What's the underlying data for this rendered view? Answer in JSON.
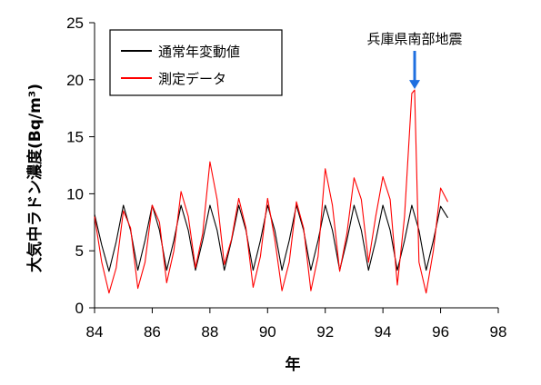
{
  "chart_data": {
    "type": "line",
    "xlabel": "年",
    "ylabel": "大気中ラドン濃度(Bq/m³)",
    "xlim": [
      84,
      98
    ],
    "ylim": [
      0,
      25
    ],
    "x_ticks": [
      "84",
      "86",
      "88",
      "90",
      "92",
      "94",
      "96",
      "98"
    ],
    "y_ticks": [
      "0",
      "5",
      "10",
      "15",
      "20",
      "25"
    ],
    "legend_position": "top-left",
    "grid": false,
    "series": [
      {
        "name": "通常年変動値",
        "color": "#000000",
        "x": [
          84.0,
          84.25,
          84.5,
          84.75,
          85.0,
          85.25,
          85.5,
          85.75,
          86.0,
          86.25,
          86.5,
          86.75,
          87.0,
          87.25,
          87.5,
          87.75,
          88.0,
          88.25,
          88.5,
          88.75,
          89.0,
          89.25,
          89.5,
          89.75,
          90.0,
          90.25,
          90.5,
          90.75,
          91.0,
          91.25,
          91.5,
          91.75,
          92.0,
          92.25,
          92.5,
          92.75,
          93.0,
          93.25,
          93.5,
          93.75,
          94.0,
          94.25,
          94.5,
          94.75,
          95.0,
          95.25,
          95.5,
          95.75,
          96.0,
          96.25
        ],
        "y": [
          8.2,
          5.5,
          3.2,
          5.8,
          9.0,
          6.8,
          3.3,
          5.9,
          9.0,
          6.8,
          3.3,
          5.9,
          9.0,
          6.8,
          3.3,
          5.9,
          9.0,
          6.8,
          3.3,
          5.9,
          9.0,
          6.8,
          3.3,
          5.9,
          9.0,
          6.8,
          3.3,
          5.9,
          9.0,
          6.8,
          3.3,
          5.9,
          9.0,
          6.8,
          3.3,
          5.9,
          9.0,
          6.8,
          3.3,
          5.9,
          9.0,
          6.8,
          3.3,
          5.9,
          9.0,
          6.8,
          3.3,
          5.9,
          8.9,
          7.9
        ]
      },
      {
        "name": "測定データ",
        "color": "#ff0000",
        "x": [
          84.0,
          84.25,
          84.5,
          84.75,
          85.0,
          85.25,
          85.5,
          85.75,
          86.0,
          86.25,
          86.5,
          86.75,
          87.0,
          87.25,
          87.5,
          87.75,
          88.0,
          88.25,
          88.5,
          88.75,
          89.0,
          89.25,
          89.5,
          89.75,
          90.0,
          90.25,
          90.5,
          90.75,
          91.0,
          91.25,
          91.5,
          91.75,
          92.0,
          92.25,
          92.5,
          92.75,
          93.0,
          93.25,
          93.5,
          93.75,
          94.0,
          94.25,
          94.5,
          94.75,
          95.0,
          95.1,
          95.25,
          95.5,
          95.75,
          96.0,
          96.25
        ],
        "y": [
          8.0,
          4.0,
          1.3,
          3.5,
          8.5,
          7.0,
          1.7,
          4.0,
          9.0,
          7.5,
          2.2,
          5.0,
          10.2,
          8.0,
          3.5,
          6.5,
          12.8,
          9.5,
          3.8,
          6.0,
          9.6,
          7.0,
          1.8,
          4.5,
          9.6,
          6.0,
          1.5,
          4.0,
          9.3,
          7.0,
          1.5,
          4.5,
          12.2,
          9.0,
          3.2,
          6.5,
          11.4,
          9.5,
          4.0,
          8.0,
          11.5,
          9.5,
          2.0,
          8.0,
          18.8,
          19.1,
          4.0,
          1.3,
          5.0,
          10.5,
          9.3
        ]
      }
    ],
    "annotations": [
      {
        "text": "兵庫県南部地震",
        "x": 95.1,
        "y": 19.1,
        "arrow_color": "#1e6fe0"
      }
    ]
  }
}
